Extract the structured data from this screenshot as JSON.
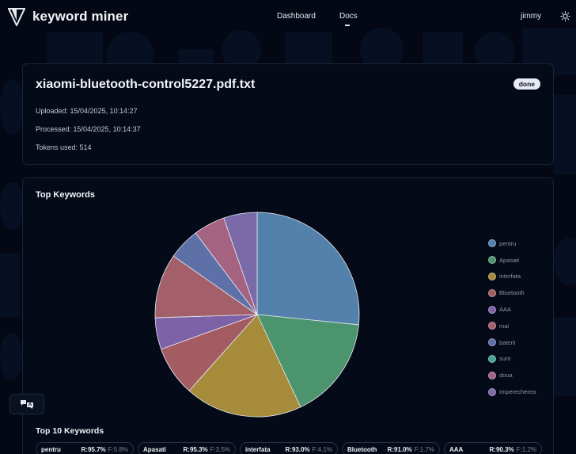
{
  "header": {
    "app_title": "keyword miner",
    "nav": {
      "dashboard": "Dashboard",
      "docs": "Docs"
    },
    "user": "jimmy",
    "logo_icon": "v-shield-icon",
    "theme_icon": "sun-icon"
  },
  "document": {
    "title": "xiaomi-bluetooth-control5227.pdf.txt",
    "status": "done",
    "uploaded": "Uploaded: 15/04/2025, 10:14:27",
    "processed": "Processed: 15/04/2025, 10:14:37",
    "tokens": "Tokens used: 514"
  },
  "chart_data": {
    "type": "pie",
    "title": "Top Keywords",
    "legend_position": "right",
    "categories": [
      "pentru",
      "Apasati",
      "interfata",
      "Bluetooth",
      "AAA",
      "mai",
      "baterii",
      "sunt",
      "doua",
      "Imperecherea"
    ],
    "values": [
      26.6,
      16.4,
      18.6,
      7.9,
      5.0,
      10.2,
      5.0,
      0.0,
      5.0,
      5.3
    ],
    "colors": [
      "#5480ac",
      "#4b946d",
      "#a58b3a",
      "#a45c63",
      "#7d62a8",
      "#a4606a",
      "#5d70a8",
      "#43a293",
      "#a56382",
      "#7a6aa8"
    ]
  },
  "top10": {
    "title": "Top 10 Keywords",
    "items": [
      {
        "name": "pentru",
        "r": "R:95.7%",
        "f": "F:5.8%"
      },
      {
        "name": "Apasati",
        "r": "R:95.3%",
        "f": "F:3.5%"
      },
      {
        "name": "interfata",
        "r": "R:93.0%",
        "f": "F:4.1%"
      },
      {
        "name": "Bluetooth",
        "r": "R:91.0%",
        "f": "F:1.7%"
      },
      {
        "name": "AAA",
        "r": "R:90.3%",
        "f": "F:1.2%"
      }
    ]
  },
  "floating": {
    "translate_icon": "translate-icon"
  }
}
